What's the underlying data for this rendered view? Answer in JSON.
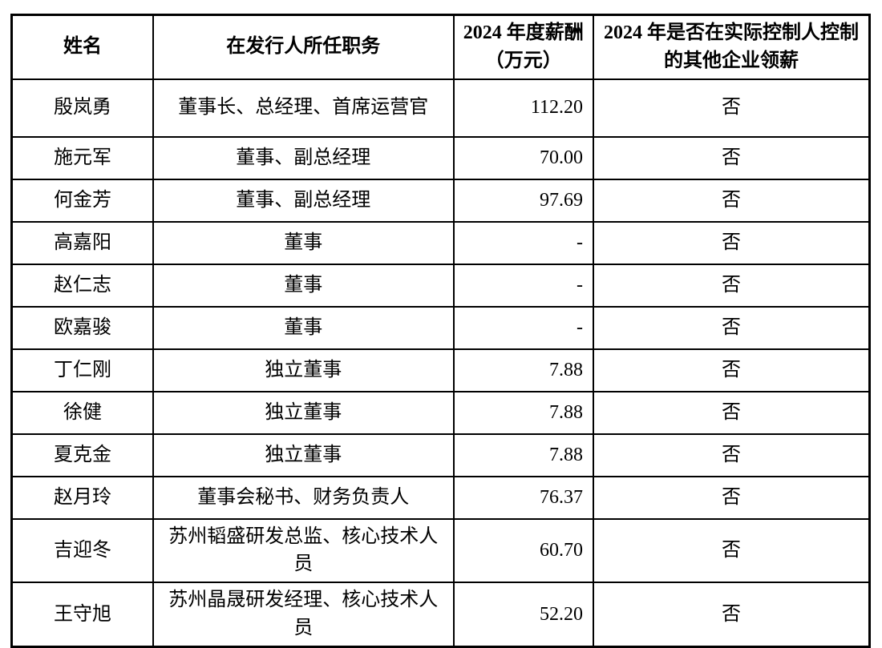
{
  "table": {
    "headers": [
      "姓名",
      "在发行人所任职务",
      "2024 年度薪酬（万元）",
      "2024 年是否在实际控制人控制的其他企业领薪"
    ],
    "rows": [
      {
        "name": "殷岚勇",
        "position": "董事长、总经理、首席运营官",
        "salary": "112.20",
        "other_company_pay": "否"
      },
      {
        "name": "施元军",
        "position": "董事、副总经理",
        "salary": "70.00",
        "other_company_pay": "否"
      },
      {
        "name": "何金芳",
        "position": "董事、副总经理",
        "salary": "97.69",
        "other_company_pay": "否"
      },
      {
        "name": "高嘉阳",
        "position": "董事",
        "salary": "-",
        "other_company_pay": "否"
      },
      {
        "name": "赵仁志",
        "position": "董事",
        "salary": "-",
        "other_company_pay": "否"
      },
      {
        "name": "欧嘉骏",
        "position": "董事",
        "salary": "-",
        "other_company_pay": "否"
      },
      {
        "name": "丁仁刚",
        "position": "独立董事",
        "salary": "7.88",
        "other_company_pay": "否"
      },
      {
        "name": "徐健",
        "position": "独立董事",
        "salary": "7.88",
        "other_company_pay": "否"
      },
      {
        "name": "夏克金",
        "position": "独立董事",
        "salary": "7.88",
        "other_company_pay": "否"
      },
      {
        "name": "赵月玲",
        "position": "董事会秘书、财务负责人",
        "salary": "76.37",
        "other_company_pay": "否"
      },
      {
        "name": "吉迎冬",
        "position": "苏州韬盛研发总监、核心技术人员",
        "salary": "60.70",
        "other_company_pay": "否"
      },
      {
        "name": "王守旭",
        "position": "苏州晶晟研发经理、核心技术人员",
        "salary": "52.20",
        "other_company_pay": "否"
      }
    ]
  }
}
